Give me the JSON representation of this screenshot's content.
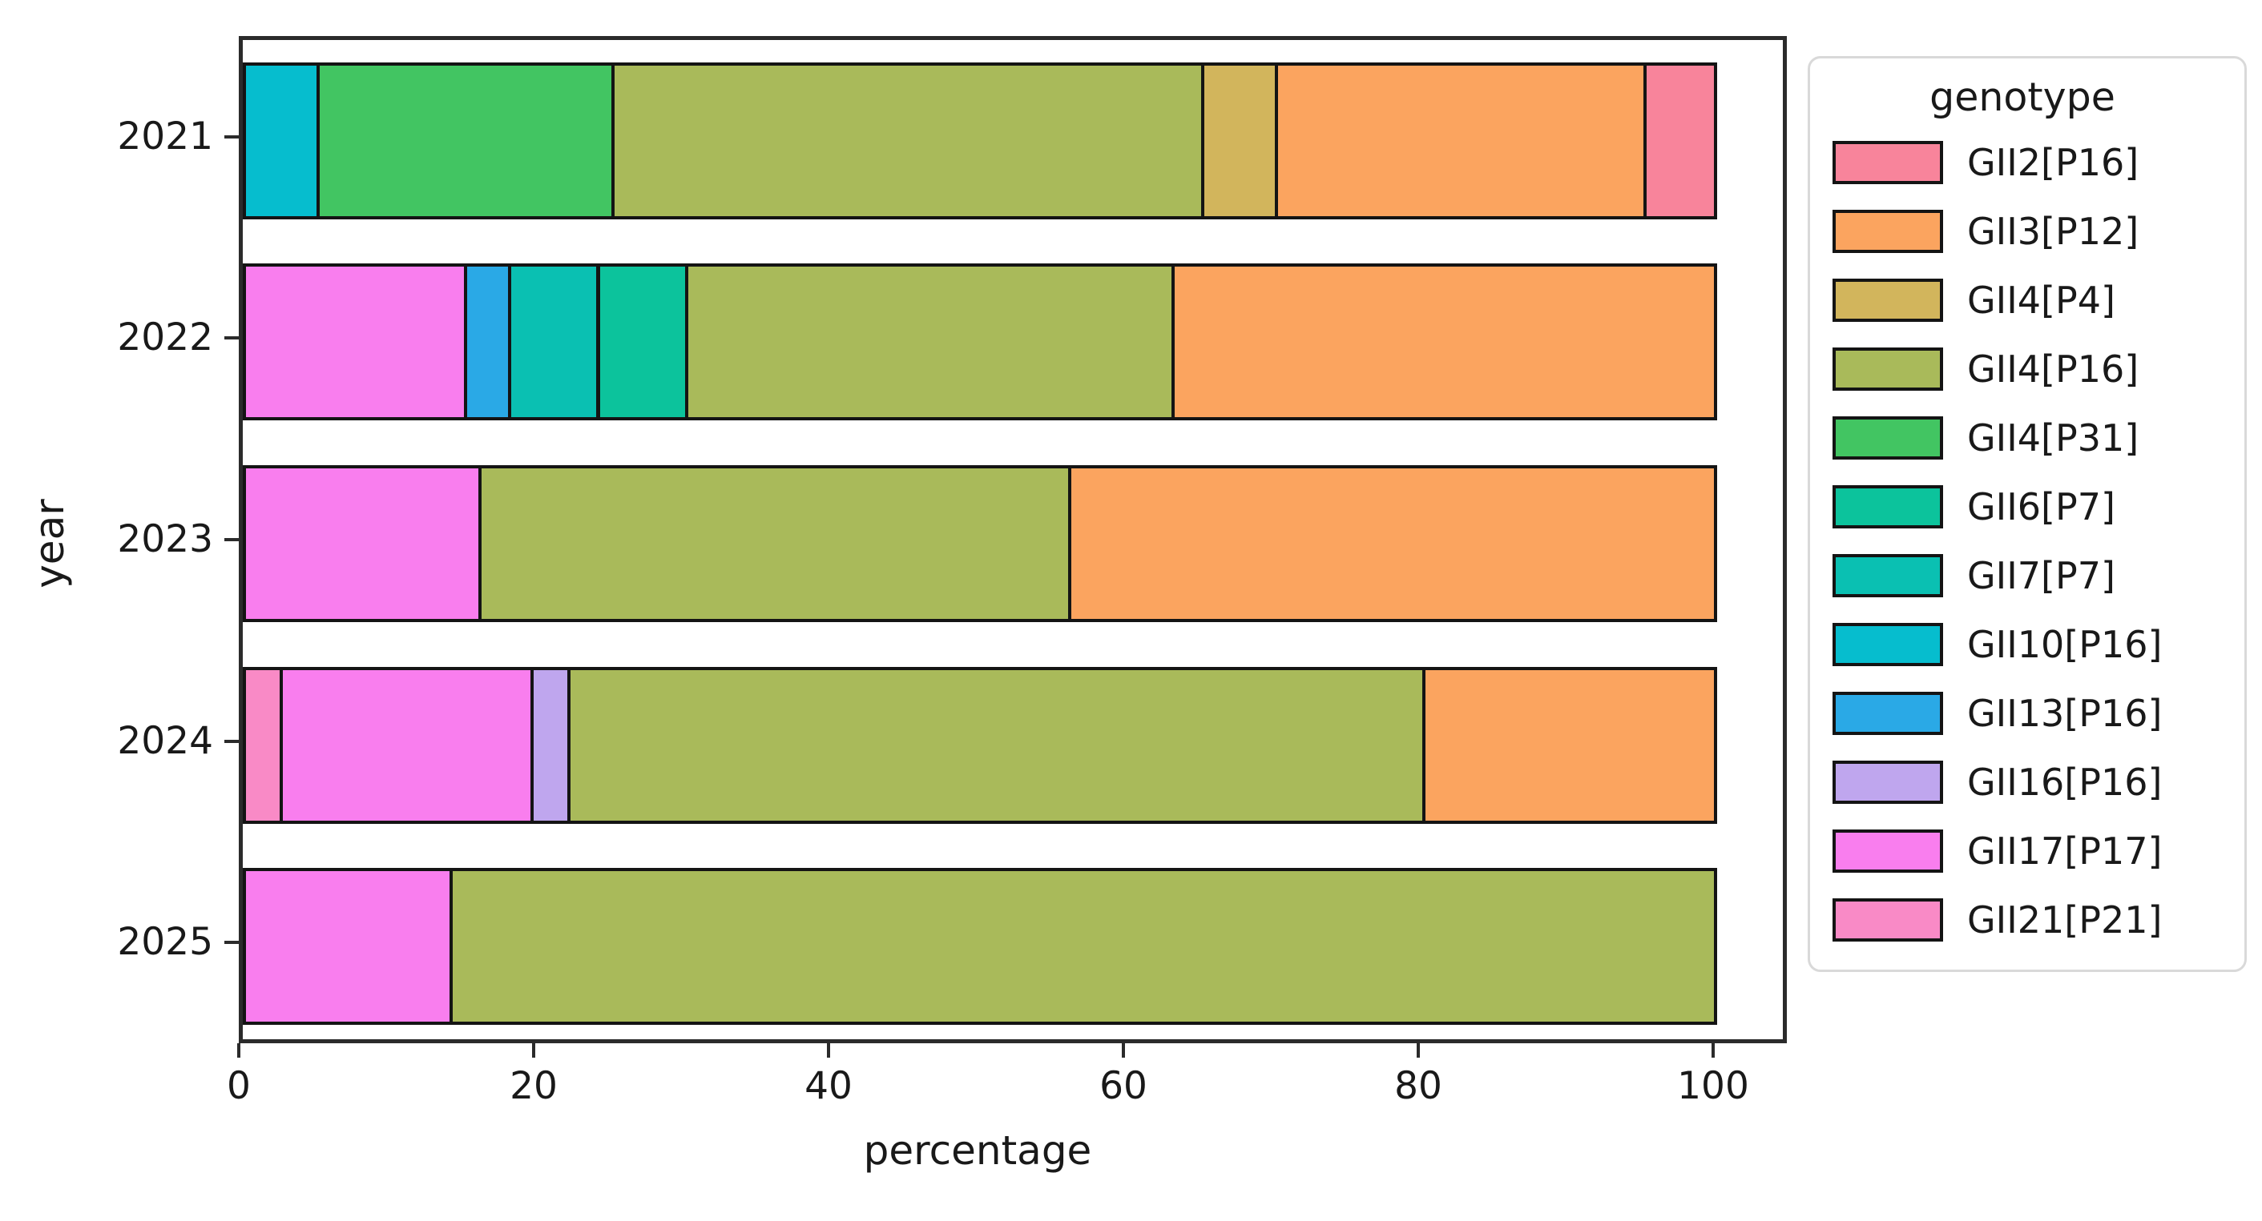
{
  "chart_data": {
    "type": "bar",
    "orientation": "horizontal",
    "stacked": true,
    "title": "",
    "xlabel": "percentage",
    "ylabel": "year",
    "categories": [
      "2021",
      "2022",
      "2023",
      "2024",
      "2025"
    ],
    "xlim": [
      0,
      105
    ],
    "xticks": [
      0,
      20,
      40,
      60,
      80,
      100
    ],
    "xtick_labels": [
      "0",
      "20",
      "40",
      "60",
      "80",
      "100"
    ],
    "grid": false,
    "legend_title": "genotype",
    "legend_position": "outside-upper-right",
    "series": [
      {
        "name": "GII2[P16]",
        "color": "#f8849b",
        "values": [
          5,
          0,
          0,
          0,
          0
        ]
      },
      {
        "name": "GII3[P12]",
        "color": "#fba45f",
        "values": [
          25,
          37,
          44,
          20,
          0
        ]
      },
      {
        "name": "GII4[P4]",
        "color": "#d2b55c",
        "values": [
          5,
          0,
          0,
          0,
          0
        ]
      },
      {
        "name": "GII4[P16]",
        "color": "#a9ba5a",
        "values": [
          40,
          33,
          40,
          58,
          86
        ]
      },
      {
        "name": "GII4[P31]",
        "color": "#42c562",
        "values": [
          20,
          0,
          0,
          0,
          0
        ]
      },
      {
        "name": "GII6[P7]",
        "color": "#0cc39c",
        "values": [
          0,
          6,
          0,
          0,
          0
        ]
      },
      {
        "name": "GII7[P7]",
        "color": "#0ac0b2",
        "values": [
          0,
          6,
          0,
          0,
          0
        ]
      },
      {
        "name": "GII10[P16]",
        "color": "#06bdce",
        "values": [
          5,
          0,
          0,
          0,
          0
        ]
      },
      {
        "name": "GII13[P16]",
        "color": "#2aa9e6",
        "values": [
          0,
          3,
          0,
          0,
          0
        ]
      },
      {
        "name": "GII16[P16]",
        "color": "#bfa6ee",
        "values": [
          0,
          0,
          0,
          2.5,
          0
        ]
      },
      {
        "name": "GII17[P17]",
        "color": "#f97eee",
        "values": [
          0,
          15,
          16,
          17,
          14
        ]
      },
      {
        "name": "GII21[P21]",
        "color": "#f98ac6",
        "values": [
          0,
          0,
          0,
          2.5,
          0
        ]
      }
    ],
    "stack_order": [
      "GII21[P21]",
      "GII17[P17]",
      "GII16[P16]",
      "GII13[P16]",
      "GII10[P16]",
      "GII7[P7]",
      "GII6[P7]",
      "GII4[P31]",
      "GII4[P16]",
      "GII4[P4]",
      "GII3[P12]",
      "GII2[P16]"
    ]
  }
}
